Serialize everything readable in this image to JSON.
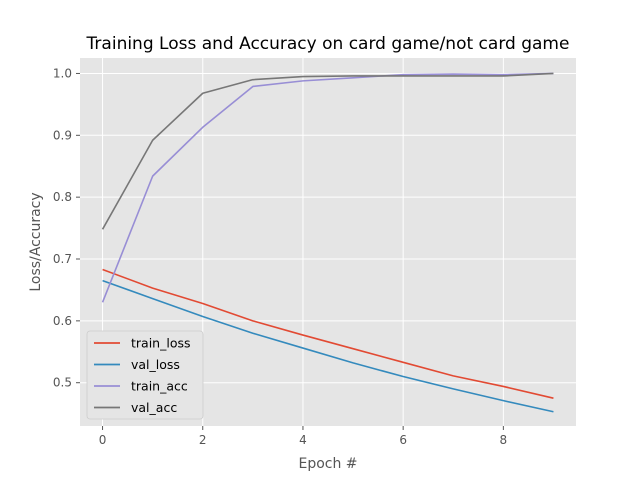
{
  "chart_data": {
    "type": "line",
    "title": "Training Loss and Accuracy on card game/not card game",
    "xlabel": "Epoch #",
    "ylabel": "Loss/Accuracy",
    "x": [
      0,
      1,
      2,
      3,
      4,
      5,
      6,
      7,
      8,
      9
    ],
    "xlim": [
      -0.45,
      9.45
    ],
    "ylim": [
      0.43,
      1.025
    ],
    "xticks": [
      0,
      2,
      4,
      6,
      8
    ],
    "yticks": [
      0.5,
      0.6,
      0.7,
      0.8,
      0.9,
      1.0
    ],
    "xtick_labels": [
      "0",
      "2",
      "4",
      "6",
      "8"
    ],
    "ytick_labels": [
      "0.5",
      "0.6",
      "0.7",
      "0.8",
      "0.9",
      "1.0"
    ],
    "grid": true,
    "legend_position": "lower-left",
    "series": [
      {
        "name": "train_loss",
        "color": "#E24A33",
        "values": [
          0.683,
          0.653,
          0.628,
          0.6,
          0.577,
          0.555,
          0.533,
          0.511,
          0.494,
          0.475
        ]
      },
      {
        "name": "val_loss",
        "color": "#348ABD",
        "values": [
          0.665,
          0.636,
          0.607,
          0.58,
          0.556,
          0.532,
          0.51,
          0.49,
          0.471,
          0.453
        ]
      },
      {
        "name": "train_acc",
        "color": "#988ED5",
        "values": [
          0.63,
          0.834,
          0.913,
          0.979,
          0.988,
          0.993,
          0.998,
          0.999,
          0.998,
          1.0
        ]
      },
      {
        "name": "val_acc",
        "color": "#777777",
        "values": [
          0.748,
          0.892,
          0.968,
          0.99,
          0.995,
          0.996,
          0.996,
          0.996,
          0.996,
          1.0
        ]
      }
    ]
  }
}
